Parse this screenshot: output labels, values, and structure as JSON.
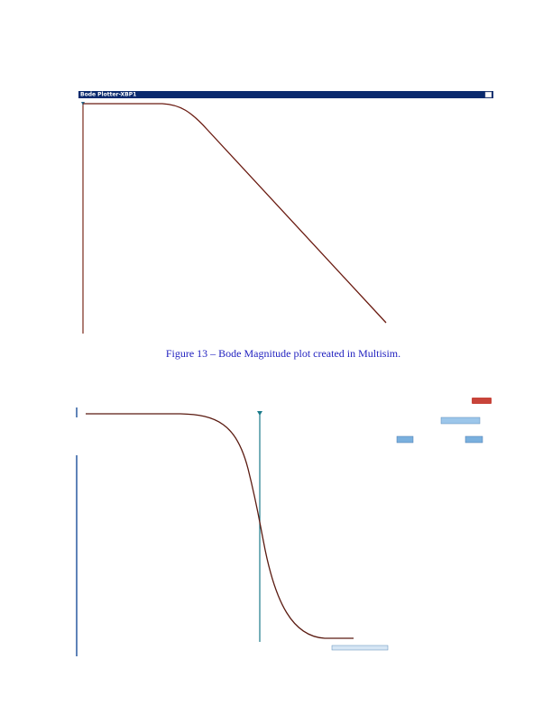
{
  "window": {
    "title": "Bode Plotter-XBP1"
  },
  "caption": "Figure 13 – Bode Magnitude plot created in Multisim."
}
